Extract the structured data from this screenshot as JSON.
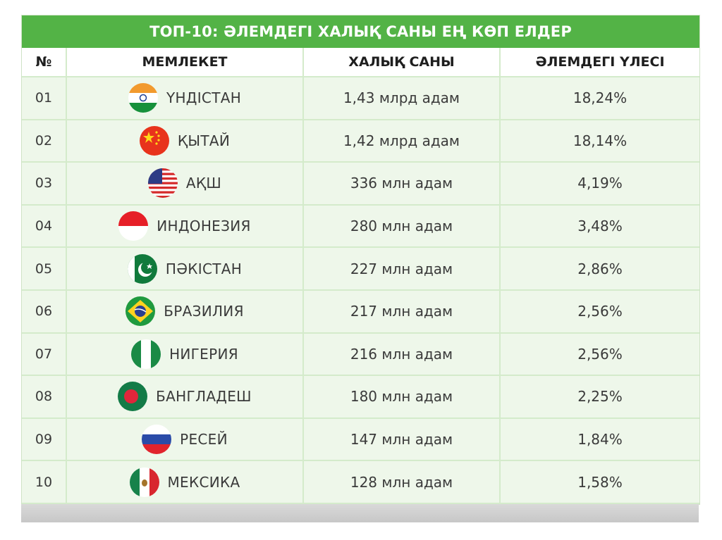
{
  "title": "ТОП-10: ӘЛЕМДЕГІ ХАЛЫҚ САНЫ ЕҢ КӨП ЕЛДЕР",
  "headers": [
    "№",
    "МЕМЛЕКЕТ",
    "ХАЛЫҚ САНЫ",
    "ӘЛЕМДЕГІ ҮЛЕСІ"
  ],
  "rows": [
    {
      "num": "01",
      "country": "ҮНДІСТАН",
      "population": "1,43 млрд адам",
      "share": "18,24%",
      "flag": "india-flag-icon"
    },
    {
      "num": "02",
      "country": "ҚЫТАЙ",
      "population": "1,42 млрд адам",
      "share": "18,14%",
      "flag": "china-flag-icon"
    },
    {
      "num": "03",
      "country": "АҚШ",
      "population": "336 млн адам",
      "share": "4,19%",
      "flag": "usa-flag-icon"
    },
    {
      "num": "04",
      "country": "ИНДОНЕЗИЯ",
      "population": "280 млн адам",
      "share": "3,48%",
      "flag": "indonesia-flag-icon"
    },
    {
      "num": "05",
      "country": "ПӘКІСТАН",
      "population": "227 млн адам",
      "share": "2,86%",
      "flag": "pakistan-flag-icon"
    },
    {
      "num": "06",
      "country": "БРАЗИЛИЯ",
      "population": "217 млн адам",
      "share": "2,56%",
      "flag": "brazil-flag-icon"
    },
    {
      "num": "07",
      "country": "НИГЕРИЯ",
      "population": "216 млн адам",
      "share": "2,56%",
      "flag": "nigeria-flag-icon"
    },
    {
      "num": "08",
      "country": "БАНГЛАДЕШ",
      "population": "180 млн адам",
      "share": "2,25%",
      "flag": "bangladesh-flag-icon"
    },
    {
      "num": "09",
      "country": "РЕСЕЙ",
      "population": "147 млн адам",
      "share": "1,84%",
      "flag": "russia-flag-icon"
    },
    {
      "num": "10",
      "country": "МЕКСИКА",
      "population": "128 млн адам",
      "share": "1,58%",
      "flag": "mexico-flag-icon"
    }
  ],
  "colors": {
    "header_green": "#53b346",
    "row_bg": "#eef7ea",
    "grid": "#d4ebcb"
  }
}
